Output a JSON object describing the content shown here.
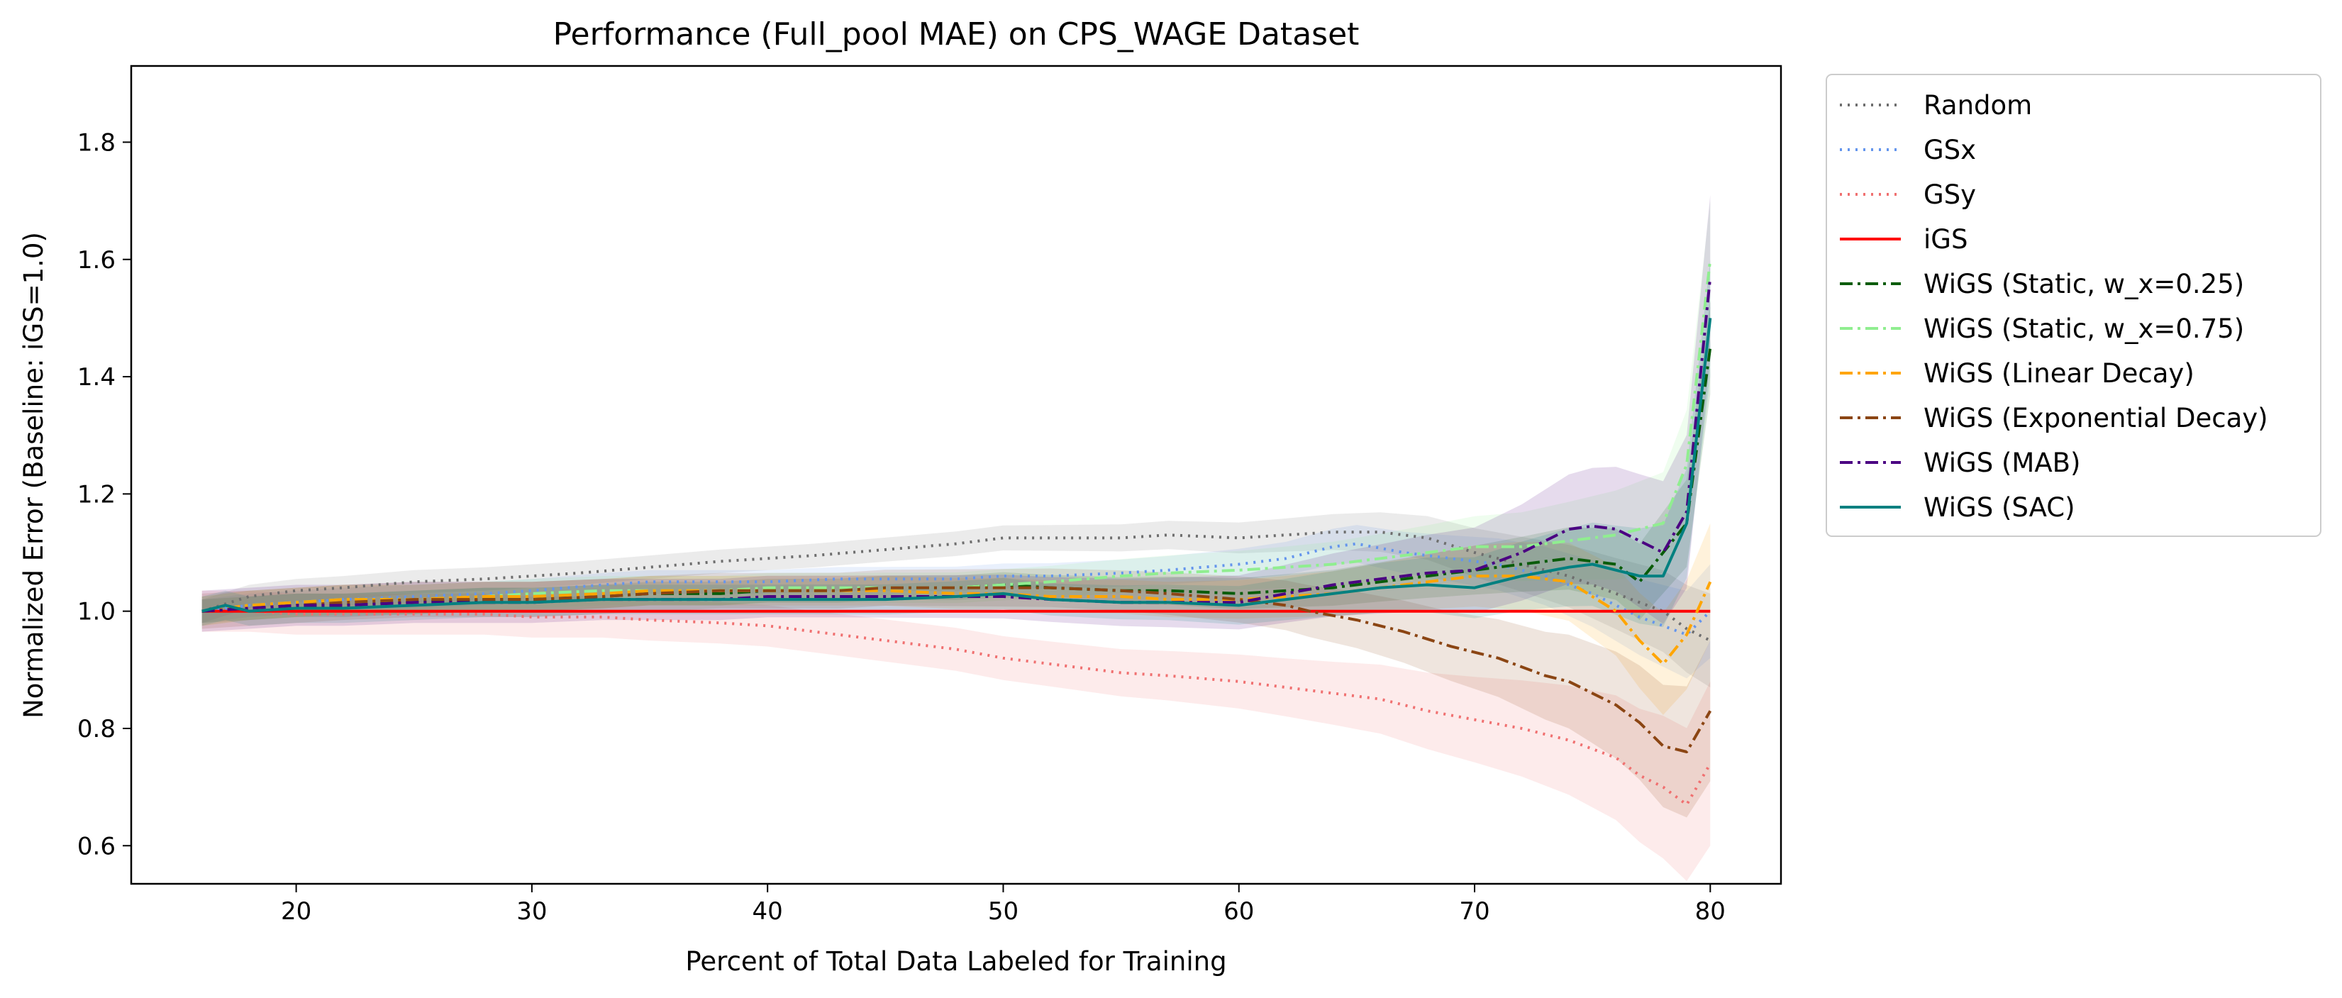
{
  "chart_data": {
    "type": "line",
    "title": "Performance (Full_pool MAE) on CPS_WAGE Dataset",
    "xlabel": "Percent of Total Data Labeled for Training",
    "ylabel": "Normalized Error (Baseline: iGS=1.0)",
    "xlim": [
      13,
      83
    ],
    "ylim": [
      0.535,
      1.93
    ],
    "xticks": [
      20,
      30,
      40,
      50,
      60,
      70,
      80
    ],
    "yticks": [
      0.6,
      0.8,
      1.0,
      1.2,
      1.4,
      1.6,
      1.8
    ],
    "xtick_labels": [
      "20",
      "30",
      "40",
      "50",
      "60",
      "70",
      "80"
    ],
    "ytick_labels": [
      "0.6",
      "0.8",
      "1.0",
      "1.2",
      "1.4",
      "1.6",
      "1.8"
    ],
    "grid": false,
    "legend_position": "outside-right",
    "series": [
      {
        "name": "Random",
        "color": "#6e6e6e",
        "dash": "dotted",
        "band": 0.02,
        "x": [
          16,
          18,
          20,
          22,
          25,
          28,
          30,
          32,
          35,
          38,
          40,
          42,
          45,
          48,
          50,
          52,
          55,
          57,
          60,
          62,
          64,
          66,
          68,
          70,
          72,
          74,
          76,
          78,
          79,
          80
        ],
        "y": [
          1.0,
          1.025,
          1.035,
          1.04,
          1.05,
          1.055,
          1.06,
          1.065,
          1.075,
          1.085,
          1.09,
          1.095,
          1.105,
          1.115,
          1.125,
          1.125,
          1.125,
          1.13,
          1.125,
          1.13,
          1.135,
          1.135,
          1.125,
          1.1,
          1.08,
          1.06,
          1.03,
          1.0,
          0.97,
          0.95
        ]
      },
      {
        "name": "GSx",
        "color": "#6495ed",
        "dash": "dotted",
        "band": 0.02,
        "x": [
          16,
          18,
          20,
          22,
          25,
          28,
          30,
          33,
          35,
          38,
          40,
          43,
          45,
          48,
          50,
          52,
          55,
          57,
          60,
          62,
          64,
          65,
          67,
          69,
          71,
          73,
          75,
          77,
          79,
          80
        ],
        "y": [
          1.0,
          1.01,
          1.015,
          1.02,
          1.025,
          1.03,
          1.035,
          1.045,
          1.05,
          1.05,
          1.05,
          1.055,
          1.055,
          1.055,
          1.06,
          1.06,
          1.065,
          1.07,
          1.08,
          1.09,
          1.11,
          1.115,
          1.1,
          1.09,
          1.08,
          1.06,
          1.03,
          0.99,
          0.96,
          1.0
        ]
      },
      {
        "name": "GSy",
        "color": "#f07070",
        "dash": "dotted",
        "band": 0.035,
        "x": [
          16,
          18,
          20,
          22,
          25,
          28,
          30,
          33,
          35,
          38,
          40,
          42,
          45,
          48,
          50,
          52,
          55,
          57,
          60,
          62,
          64,
          66,
          68,
          70,
          72,
          74,
          76,
          77,
          78,
          79,
          80
        ],
        "y": [
          1.0,
          1.0,
          0.995,
          0.995,
          0.995,
          0.995,
          0.99,
          0.99,
          0.985,
          0.98,
          0.975,
          0.965,
          0.95,
          0.935,
          0.92,
          0.91,
          0.895,
          0.89,
          0.88,
          0.87,
          0.86,
          0.85,
          0.83,
          0.815,
          0.8,
          0.78,
          0.75,
          0.72,
          0.7,
          0.67,
          0.74
        ]
      },
      {
        "name": "iGS",
        "color": "#ff0000",
        "dash": "solid",
        "band": 0,
        "x": [
          16,
          80
        ],
        "y": [
          1.0,
          1.0
        ]
      },
      {
        "name": "WiGS (Static, w_x=0.25)",
        "color": "#0a5c0a",
        "dash": "dashdot",
        "band": 0.02,
        "x": [
          16,
          18,
          20,
          22,
          25,
          28,
          30,
          33,
          35,
          38,
          40,
          43,
          45,
          48,
          50,
          52,
          55,
          57,
          60,
          62,
          64,
          66,
          68,
          70,
          72,
          74,
          76,
          77,
          78,
          79,
          80
        ],
        "y": [
          1.0,
          1.005,
          1.01,
          1.01,
          1.015,
          1.02,
          1.02,
          1.025,
          1.03,
          1.03,
          1.035,
          1.035,
          1.04,
          1.04,
          1.045,
          1.04,
          1.035,
          1.035,
          1.03,
          1.035,
          1.04,
          1.05,
          1.06,
          1.07,
          1.08,
          1.09,
          1.08,
          1.05,
          1.1,
          1.15,
          1.45
        ]
      },
      {
        "name": "WiGS (Static, w_x=0.75)",
        "color": "#90ee90",
        "dash": "dashdot",
        "band": 0.025,
        "x": [
          16,
          18,
          20,
          22,
          25,
          28,
          30,
          33,
          35,
          38,
          40,
          43,
          45,
          48,
          50,
          52,
          55,
          57,
          60,
          62,
          64,
          66,
          68,
          70,
          72,
          74,
          76,
          78,
          79,
          80
        ],
        "y": [
          1.0,
          1.01,
          1.015,
          1.02,
          1.02,
          1.025,
          1.03,
          1.035,
          1.035,
          1.035,
          1.04,
          1.04,
          1.04,
          1.04,
          1.045,
          1.05,
          1.06,
          1.065,
          1.07,
          1.075,
          1.08,
          1.09,
          1.1,
          1.11,
          1.11,
          1.12,
          1.13,
          1.15,
          1.25,
          1.6
        ]
      },
      {
        "name": "WiGS (Linear Decay)",
        "color": "#ffa500",
        "dash": "dashdot",
        "band": 0.025,
        "x": [
          16,
          18,
          20,
          22,
          25,
          28,
          30,
          33,
          35,
          38,
          40,
          43,
          45,
          48,
          50,
          52,
          55,
          57,
          60,
          62,
          64,
          66,
          68,
          70,
          72,
          74,
          76,
          77,
          78,
          79,
          80
        ],
        "y": [
          1.0,
          1.01,
          1.015,
          1.02,
          1.02,
          1.025,
          1.025,
          1.03,
          1.035,
          1.035,
          1.035,
          1.035,
          1.035,
          1.03,
          1.03,
          1.025,
          1.025,
          1.02,
          1.02,
          1.025,
          1.03,
          1.04,
          1.05,
          1.06,
          1.06,
          1.05,
          1.0,
          0.95,
          0.91,
          0.96,
          1.05
        ]
      },
      {
        "name": "WiGS (Exponential Decay)",
        "color": "#8b4513",
        "dash": "dashdot",
        "band": 0.03,
        "x": [
          16,
          18,
          20,
          22,
          25,
          28,
          30,
          33,
          35,
          38,
          40,
          43,
          45,
          48,
          50,
          52,
          55,
          57,
          60,
          62,
          63,
          65,
          67,
          69,
          71,
          73,
          74,
          75,
          76,
          77,
          78,
          79,
          80
        ],
        "y": [
          1.0,
          1.005,
          1.01,
          1.015,
          1.02,
          1.02,
          1.02,
          1.025,
          1.03,
          1.035,
          1.035,
          1.035,
          1.04,
          1.04,
          1.04,
          1.04,
          1.035,
          1.03,
          1.02,
          1.01,
          1.0,
          0.985,
          0.965,
          0.94,
          0.92,
          0.89,
          0.88,
          0.86,
          0.84,
          0.81,
          0.77,
          0.76,
          0.83
        ]
      },
      {
        "name": "WiGS (MAB)",
        "color": "#4b0082",
        "dash": "dashdot",
        "band": 0.035,
        "x": [
          16,
          18,
          20,
          22,
          25,
          28,
          30,
          33,
          35,
          38,
          40,
          43,
          45,
          48,
          50,
          52,
          55,
          57,
          60,
          62,
          64,
          66,
          68,
          70,
          72,
          74,
          75,
          76,
          77,
          78,
          79,
          80
        ],
        "y": [
          1.0,
          1.005,
          1.01,
          1.01,
          1.015,
          1.015,
          1.015,
          1.02,
          1.02,
          1.02,
          1.025,
          1.025,
          1.025,
          1.025,
          1.025,
          1.02,
          1.015,
          1.015,
          1.015,
          1.03,
          1.045,
          1.055,
          1.065,
          1.07,
          1.1,
          1.14,
          1.145,
          1.14,
          1.12,
          1.1,
          1.17,
          1.57
        ]
      },
      {
        "name": "WiGS (SAC)",
        "color": "#008080",
        "dash": "solid",
        "band": 0.025,
        "x": [
          16,
          17,
          18,
          20,
          22,
          25,
          28,
          30,
          33,
          35,
          38,
          40,
          43,
          45,
          48,
          50,
          52,
          55,
          57,
          60,
          62,
          64,
          66,
          68,
          70,
          72,
          74,
          75,
          76,
          77,
          78,
          79,
          80
        ],
        "y": [
          1.0,
          1.01,
          1.0,
          1.005,
          1.005,
          1.01,
          1.015,
          1.015,
          1.02,
          1.02,
          1.02,
          1.02,
          1.02,
          1.02,
          1.025,
          1.03,
          1.02,
          1.015,
          1.015,
          1.01,
          1.02,
          1.03,
          1.04,
          1.045,
          1.04,
          1.06,
          1.075,
          1.08,
          1.07,
          1.06,
          1.06,
          1.15,
          1.5
        ]
      }
    ]
  }
}
